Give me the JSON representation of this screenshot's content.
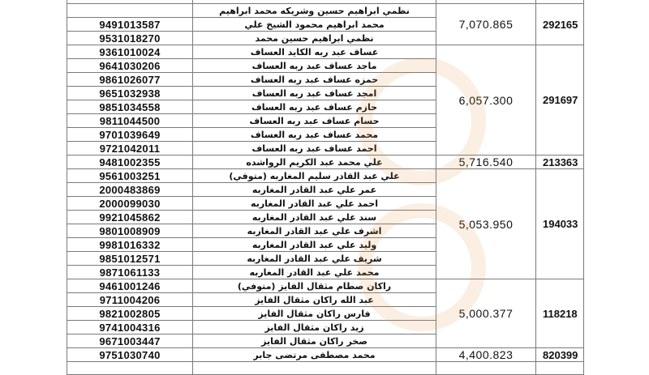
{
  "rows": [
    {
      "id": "",
      "name": "نظمي ابراهيم حسين وشريكه محمد ابراهيم"
    },
    {
      "id": "9491013587",
      "name": "محمد ابراهيم محمود الشيخ علي"
    },
    {
      "id": "9531018270",
      "name": "نظمي ابراهيم حسين محمد"
    },
    {
      "id": "9361010024",
      "name": "عساف عبد ربه الكايد العساف"
    },
    {
      "id": "9641030206",
      "name": "ماجد عساف عبد ربه العساف"
    },
    {
      "id": "9861026077",
      "name": "حمزه عساف عبد ربه العساف"
    },
    {
      "id": "9651032938",
      "name": "امجد عساف عبد ربه العساف"
    },
    {
      "id": "9851034558",
      "name": "حازم عساف عبد ربه العساف"
    },
    {
      "id": "9811044500",
      "name": "حسام عساف عبد ربه العساف"
    },
    {
      "id": "9701039649",
      "name": "محمد عساف عبد ربه العساف"
    },
    {
      "id": "9721042011",
      "name": "احمد عساف عبد ربه العساف"
    },
    {
      "id": "9481002355",
      "name": "علي محمد عبد الكريم الرواشده"
    },
    {
      "id": "9561003251",
      "name": "علي عبد القادر سليم المغاربه (متوفي)"
    },
    {
      "id": "2000483869",
      "name": "عمر علي عبد القادر المغاربه"
    },
    {
      "id": "2000099030",
      "name": "احمد علي عبد القادر المغاربه"
    },
    {
      "id": "9921045862",
      "name": "سند علي عبد القادر المغاربه"
    },
    {
      "id": "9801008909",
      "name": "اشرف علي عبد القادر المغاربه"
    },
    {
      "id": "9981016332",
      "name": "وليد علي عبد القادر المغاربه"
    },
    {
      "id": "9851012571",
      "name": "شريف علي عبد القادر المغاربه"
    },
    {
      "id": "9871061133",
      "name": "محمد علي عبد القادر المغاربه"
    },
    {
      "id": "9461001246",
      "name": "راكان صطام مثقال الفايز (متوفي)"
    },
    {
      "id": "9711004206",
      "name": "عبد الله راكان مثقال الفايز"
    },
    {
      "id": "9821002805",
      "name": "فارس راكان مثقال الفايز"
    },
    {
      "id": "9741004316",
      "name": "زيد راكان مثقال الفايز"
    },
    {
      "id": "9671003447",
      "name": "صخر راكان مثقال الفايز"
    },
    {
      "id": "9751030740",
      "name": "محمد مصطفى مرتضى جابر"
    }
  ],
  "groups": [
    {
      "first_row": 0,
      "row_count": 3,
      "amount": "7,070.865",
      "code": "292165"
    },
    {
      "first_row": 3,
      "row_count": 8,
      "amount": "6,057.300",
      "code": "291697"
    },
    {
      "first_row": 11,
      "row_count": 1,
      "amount": "5,716.540",
      "code": "213363"
    },
    {
      "first_row": 12,
      "row_count": 8,
      "amount": "5,053.950",
      "code": "194033"
    },
    {
      "first_row": 20,
      "row_count": 5,
      "amount": "5,000.377",
      "code": "118218"
    },
    {
      "first_row": 25,
      "row_count": 1,
      "amount": "4,400.823",
      "code": "820399"
    }
  ],
  "colors": {
    "border": "#7a7a7a",
    "text": "#111111",
    "watermark": "#e08a2a"
  }
}
